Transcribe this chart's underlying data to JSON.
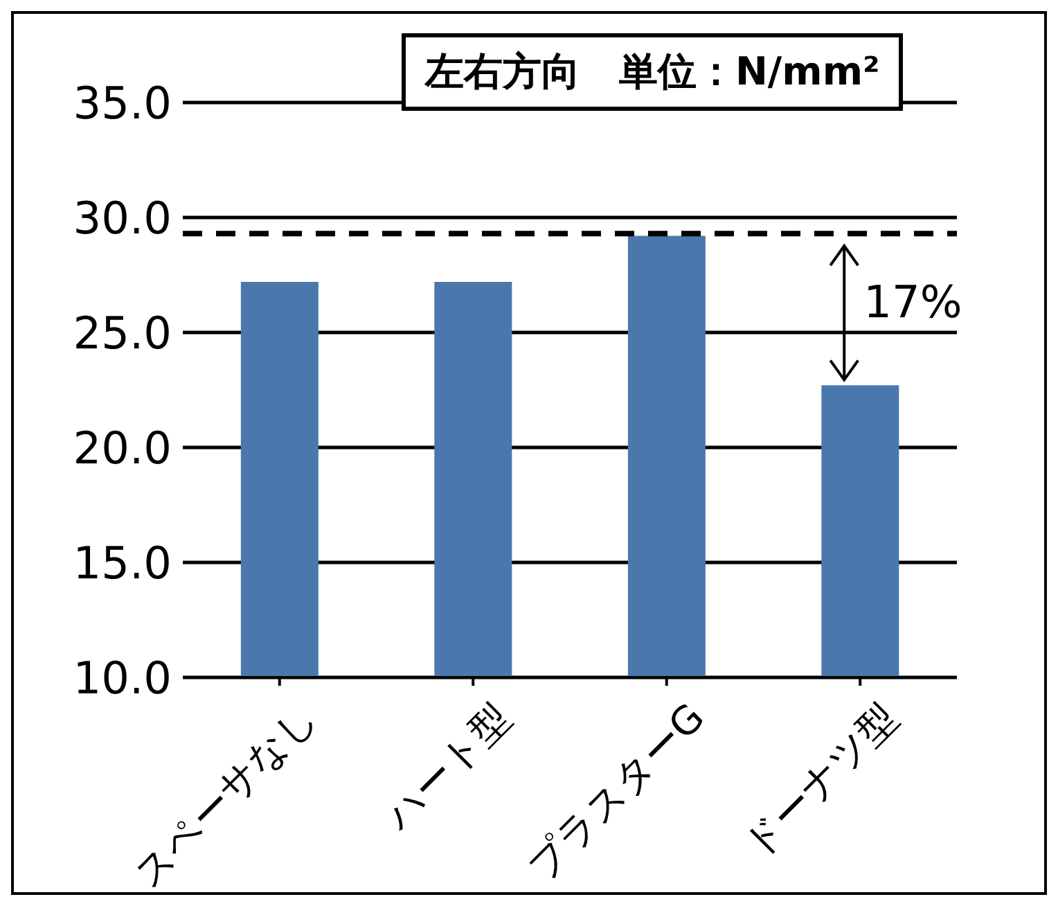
{
  "chart_data": {
    "type": "bar",
    "title": "左右方向　単位：N/mm²",
    "categories": [
      "スペーサなし",
      "ハート型",
      "プラスターG",
      "ドーナツ型"
    ],
    "values": [
      27.2,
      27.2,
      29.2,
      22.7
    ],
    "color": "#4a78ad",
    "ylim": [
      10,
      35
    ],
    "yticks": [
      {
        "value": 10,
        "label": "10.0"
      },
      {
        "value": 15,
        "label": "15.0"
      },
      {
        "value": 20,
        "label": "20.0"
      },
      {
        "value": 25,
        "label": "25.0"
      },
      {
        "value": 30,
        "label": "30.0"
      },
      {
        "value": 35,
        "label": "35.0"
      }
    ],
    "grid": "y",
    "ref_lines": [
      {
        "axis": "y",
        "value": 29.3,
        "color": "#000000",
        "line_style": "dashed"
      }
    ],
    "annotations": [
      "17%"
    ]
  }
}
